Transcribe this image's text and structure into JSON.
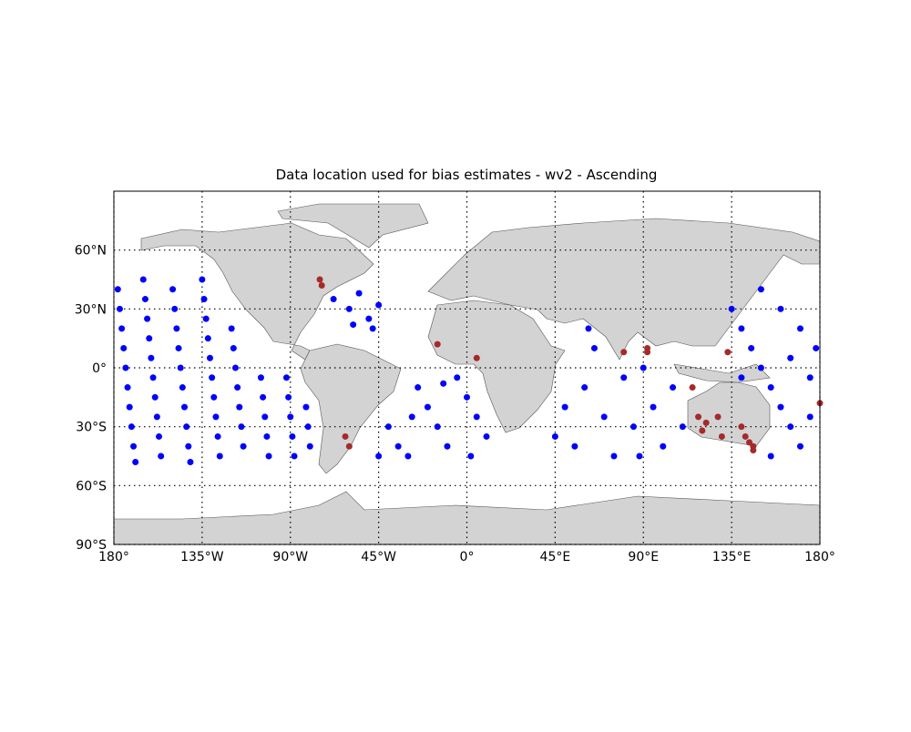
{
  "chart_data": {
    "type": "scatter",
    "title": "Data location used for bias estimates - wv2 - Ascending",
    "xlim": [
      -180,
      180
    ],
    "ylim": [
      -90,
      90
    ],
    "xticks": [
      {
        "value": -180,
        "label": "180°"
      },
      {
        "value": -135,
        "label": "135°W"
      },
      {
        "value": -90,
        "label": "90°W"
      },
      {
        "value": -45,
        "label": "45°W"
      },
      {
        "value": 0,
        "label": "0°"
      },
      {
        "value": 45,
        "label": "45°E"
      },
      {
        "value": 90,
        "label": "90°E"
      },
      {
        "value": 135,
        "label": "135°E"
      },
      {
        "value": 180,
        "label": "180°"
      }
    ],
    "yticks": [
      {
        "value": -90,
        "label": "90°S"
      },
      {
        "value": -60,
        "label": "60°S"
      },
      {
        "value": -30,
        "label": "30°S"
      },
      {
        "value": 0,
        "label": "0°"
      },
      {
        "value": 30,
        "label": "30°N"
      },
      {
        "value": 60,
        "label": "60°N"
      }
    ],
    "grid": true,
    "series": [
      {
        "color": "#0000ff",
        "x": [
          -178,
          -177,
          -176,
          -175,
          -174,
          -173,
          -172,
          -171,
          -170,
          -169,
          -165,
          -164,
          -163,
          -162,
          -161,
          -160,
          -159,
          -158,
          -157,
          -156,
          -150,
          -149,
          -148,
          -147,
          -146,
          -145,
          -144,
          -143,
          -142,
          -141,
          -135,
          -134,
          -133,
          -132,
          -131,
          -130,
          -129,
          -128,
          -127,
          -126,
          -120,
          -119,
          -118,
          -117,
          -116,
          -115,
          -114,
          -105,
          -104,
          -103,
          -102,
          -101,
          -92,
          -91,
          -90,
          -89,
          -88,
          -82,
          -81,
          -80,
          -68,
          -60,
          -55,
          -50,
          -45,
          -48,
          -58,
          -40,
          -35,
          -30,
          -25,
          -20,
          -15,
          -10,
          -5,
          0,
          5,
          10,
          -28,
          -12,
          2,
          -45,
          45,
          50,
          55,
          60,
          65,
          70,
          75,
          80,
          85,
          90,
          95,
          100,
          105,
          110,
          62,
          88,
          135,
          140,
          145,
          150,
          155,
          160,
          165,
          170,
          175,
          178,
          150,
          160,
          170,
          140,
          165,
          155,
          175
        ],
        "values": [
          40,
          30,
          20,
          10,
          0,
          -10,
          -20,
          -30,
          -40,
          -48,
          45,
          35,
          25,
          15,
          5,
          -5,
          -15,
          -25,
          -35,
          -45,
          40,
          30,
          20,
          10,
          0,
          -10,
          -20,
          -30,
          -40,
          -48,
          45,
          35,
          25,
          15,
          5,
          -5,
          -15,
          -25,
          -35,
          -45,
          20,
          10,
          0,
          -10,
          -20,
          -30,
          -40,
          -5,
          -15,
          -25,
          -35,
          -45,
          -5,
          -15,
          -25,
          -35,
          -45,
          -20,
          -30,
          -40,
          35,
          30,
          38,
          25,
          32,
          20,
          22,
          -30,
          -40,
          -45,
          -10,
          -20,
          -30,
          -40,
          -5,
          -15,
          -25,
          -35,
          -25,
          -8,
          -45,
          -45,
          -35,
          -20,
          -40,
          -10,
          10,
          -25,
          -45,
          -5,
          -30,
          0,
          -20,
          -40,
          -10,
          -30,
          20,
          -45,
          30,
          20,
          10,
          0,
          -10,
          -20,
          -30,
          -40,
          -5,
          10,
          40,
          30,
          20,
          -5,
          5,
          -45,
          -25
        ]
      },
      {
        "color": "#a52a2a",
        "x": [
          -75,
          -74,
          -62,
          -60,
          -15,
          5,
          80,
          92,
          92,
          115,
          118,
          120,
          122,
          128,
          130,
          133,
          140,
          142,
          144,
          146,
          146,
          180
        ],
        "values": [
          45,
          42,
          -35,
          -40,
          12,
          5,
          8,
          10,
          8,
          -10,
          -25,
          -32,
          -28,
          -25,
          -35,
          8,
          -30,
          -35,
          -38,
          -40,
          -42,
          -18
        ]
      }
    ]
  }
}
